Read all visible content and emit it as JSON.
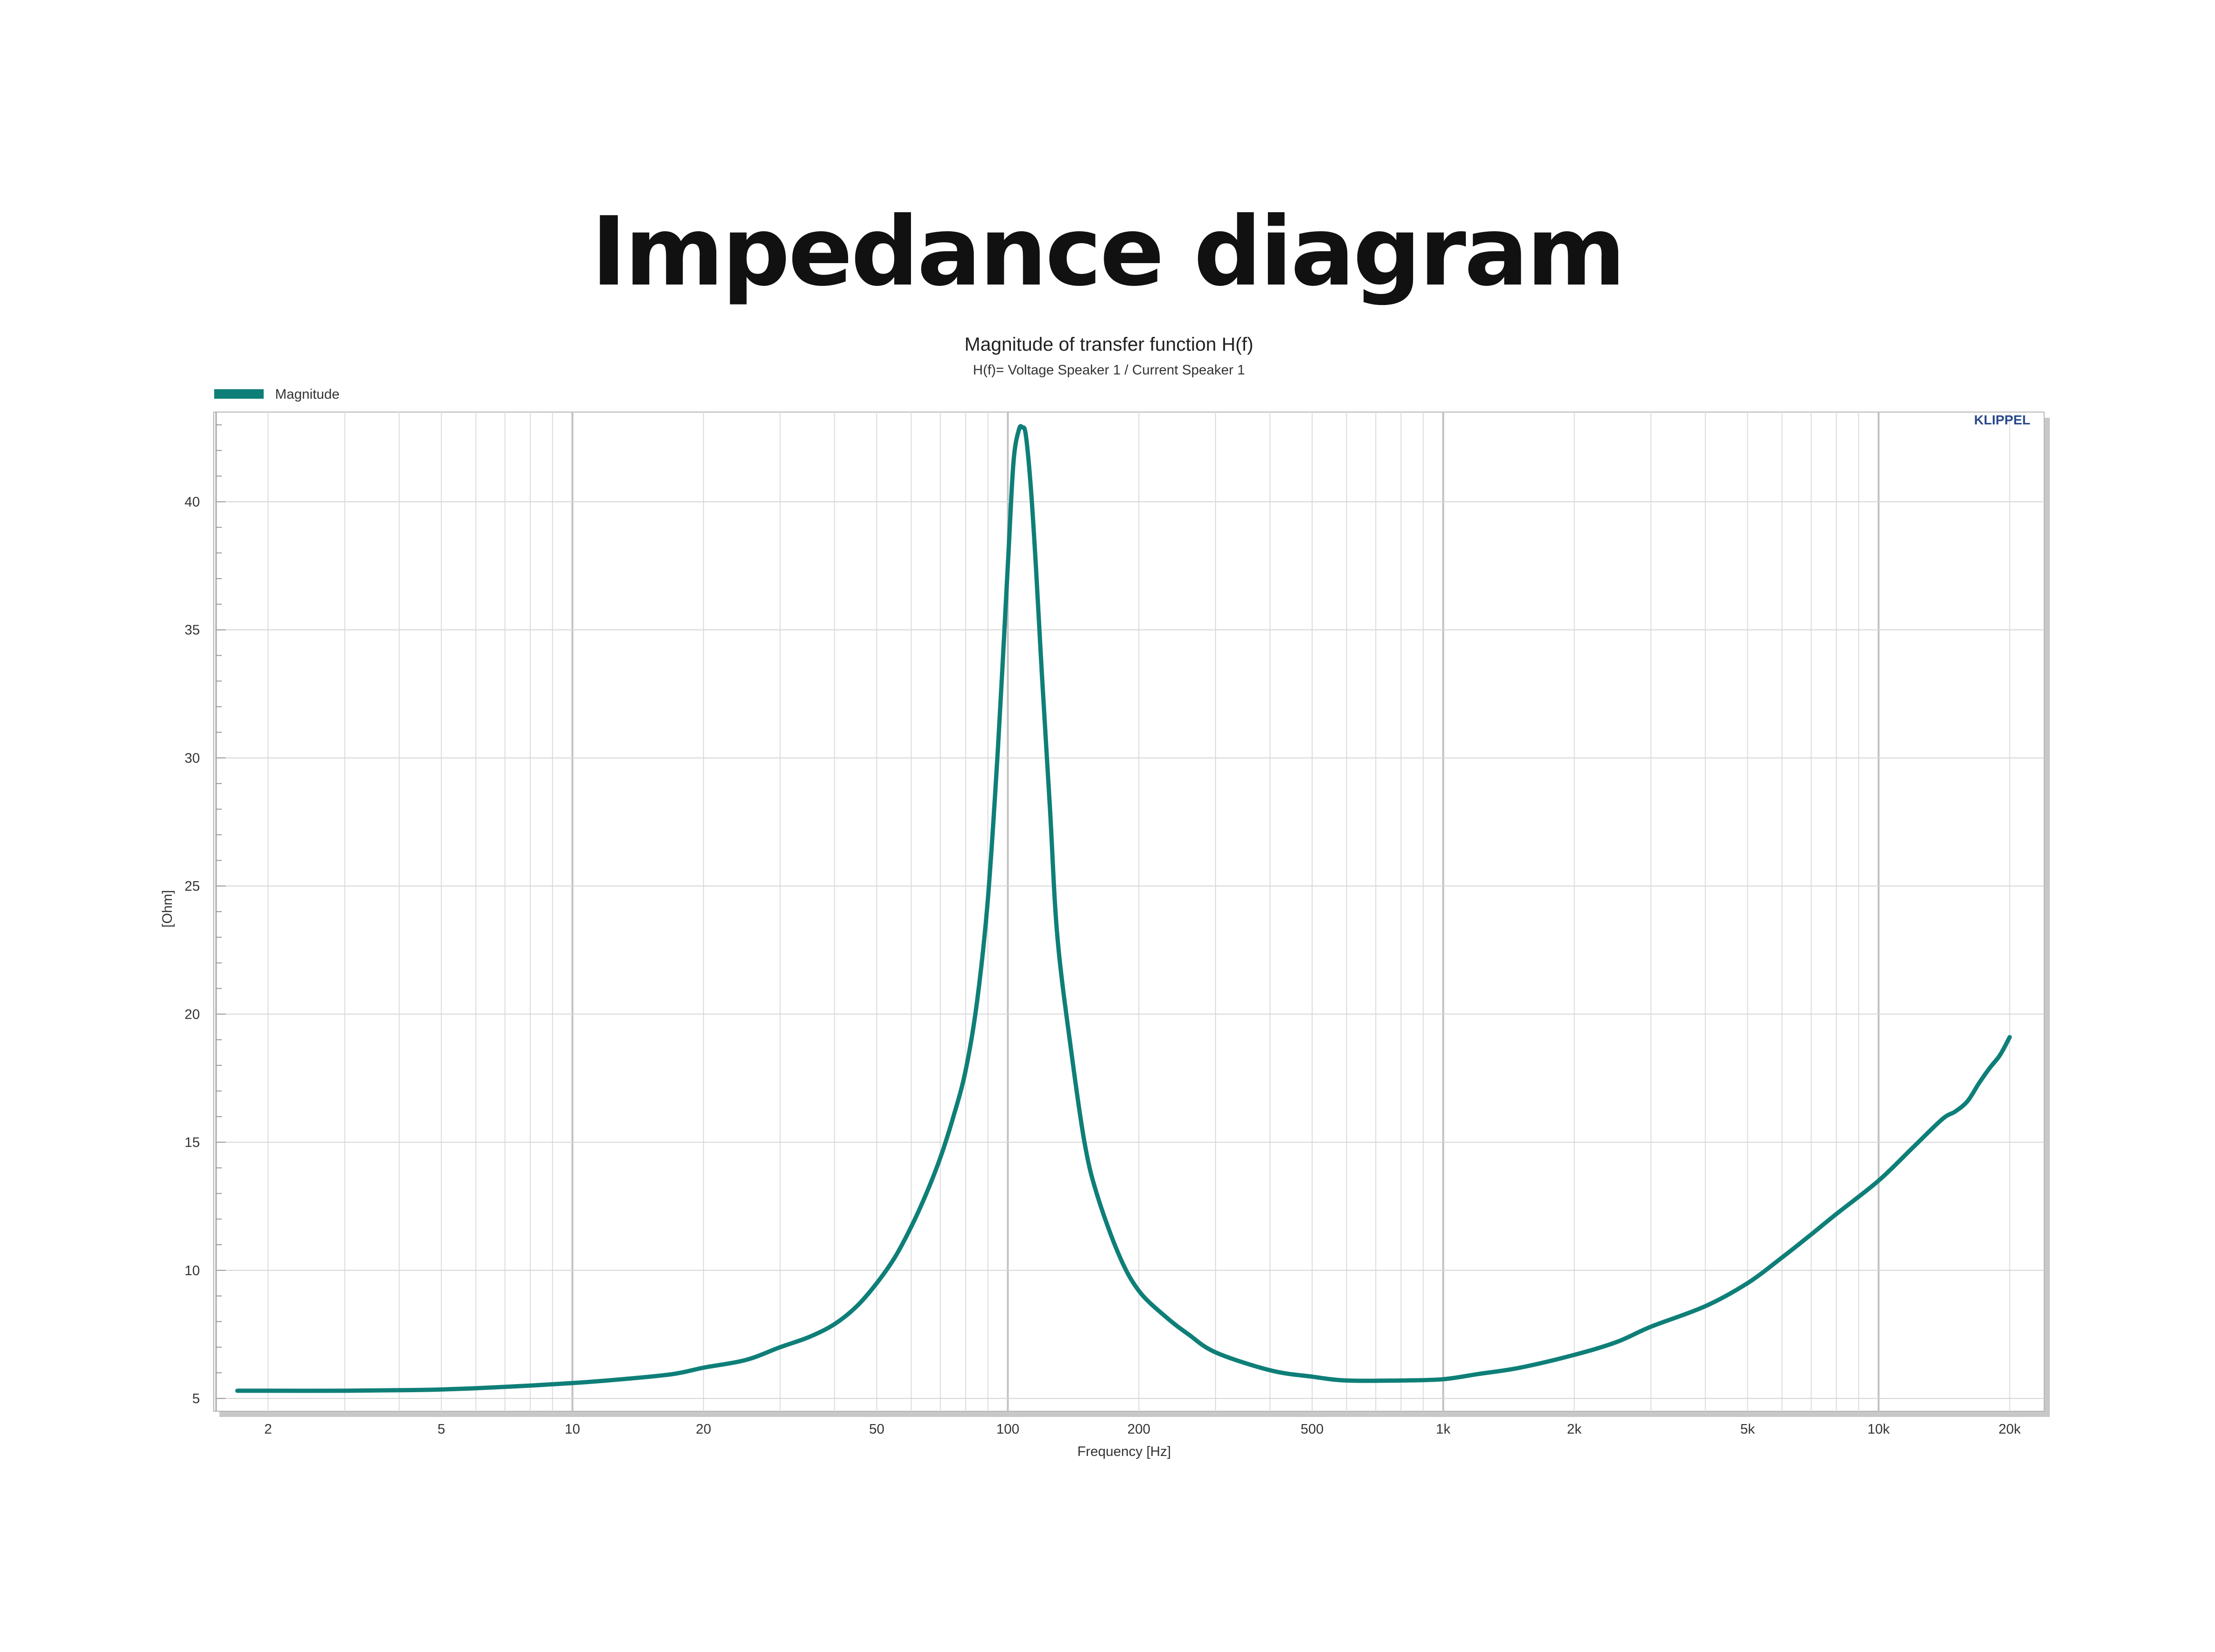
{
  "page_title": "Impedance diagram",
  "chart_data": {
    "type": "line",
    "title": "Magnitude of transfer function H(f)",
    "subtitle": "H(f)= Voltage Speaker 1 / Current Speaker 1",
    "xlabel": "Frequency [Hz]",
    "ylabel": "[Ohm]",
    "x_scale": "log",
    "xlim": [
      1.5,
      24000
    ],
    "ylim": [
      4.5,
      43.5
    ],
    "grid": true,
    "legend_position": "top-left",
    "watermark": "KLIPPEL",
    "x_ticks": [
      {
        "value": 2,
        "label": "2"
      },
      {
        "value": 5,
        "label": "5"
      },
      {
        "value": 10,
        "label": "10"
      },
      {
        "value": 20,
        "label": "20"
      },
      {
        "value": 50,
        "label": "50"
      },
      {
        "value": 100,
        "label": "100"
      },
      {
        "value": 200,
        "label": "200"
      },
      {
        "value": 500,
        "label": "500"
      },
      {
        "value": 1000,
        "label": "1k"
      },
      {
        "value": 2000,
        "label": "2k"
      },
      {
        "value": 5000,
        "label": "5k"
      },
      {
        "value": 10000,
        "label": "10k"
      },
      {
        "value": 20000,
        "label": "20k"
      }
    ],
    "y_ticks": [
      {
        "value": 5,
        "label": "5"
      },
      {
        "value": 10,
        "label": "10"
      },
      {
        "value": 15,
        "label": "15"
      },
      {
        "value": 20,
        "label": "20"
      },
      {
        "value": 25,
        "label": "25"
      },
      {
        "value": 30,
        "label": "30"
      },
      {
        "value": 35,
        "label": "35"
      },
      {
        "value": 40,
        "label": "40"
      }
    ],
    "series": [
      {
        "name": "Magnitude",
        "color": "#0e7f78",
        "x": [
          1.7,
          2,
          3,
          4,
          5,
          7,
          10,
          13,
          17,
          20,
          25,
          30,
          35,
          40,
          45,
          50,
          55,
          60,
          65,
          70,
          75,
          80,
          85,
          90,
          95,
          100,
          103,
          106,
          108,
          110,
          113,
          116,
          120,
          125,
          130,
          140,
          150,
          160,
          180,
          200,
          230,
          260,
          300,
          400,
          500,
          600,
          800,
          1000,
          1200,
          1500,
          2000,
          2500,
          3000,
          4000,
          5000,
          6000,
          7000,
          8000,
          10000,
          12000,
          14000,
          15000,
          16000,
          17000,
          18000,
          19000,
          20000
        ],
        "values": [
          5.3,
          5.3,
          5.3,
          5.32,
          5.35,
          5.45,
          5.6,
          5.75,
          5.95,
          6.2,
          6.5,
          7.0,
          7.4,
          7.9,
          8.6,
          9.5,
          10.5,
          11.7,
          13.0,
          14.4,
          16.0,
          17.8,
          20.5,
          24.5,
          30.5,
          37.5,
          41.5,
          42.8,
          42.9,
          42.6,
          40.5,
          37.5,
          33.0,
          28.0,
          23.0,
          18.5,
          15.0,
          13.0,
          10.6,
          9.2,
          8.2,
          7.5,
          6.8,
          6.1,
          5.85,
          5.7,
          5.7,
          5.75,
          5.95,
          6.2,
          6.7,
          7.2,
          7.8,
          8.6,
          9.5,
          10.5,
          11.4,
          12.2,
          13.5,
          14.8,
          15.9,
          16.2,
          16.6,
          17.3,
          17.9,
          18.4,
          19.1
        ]
      }
    ]
  }
}
